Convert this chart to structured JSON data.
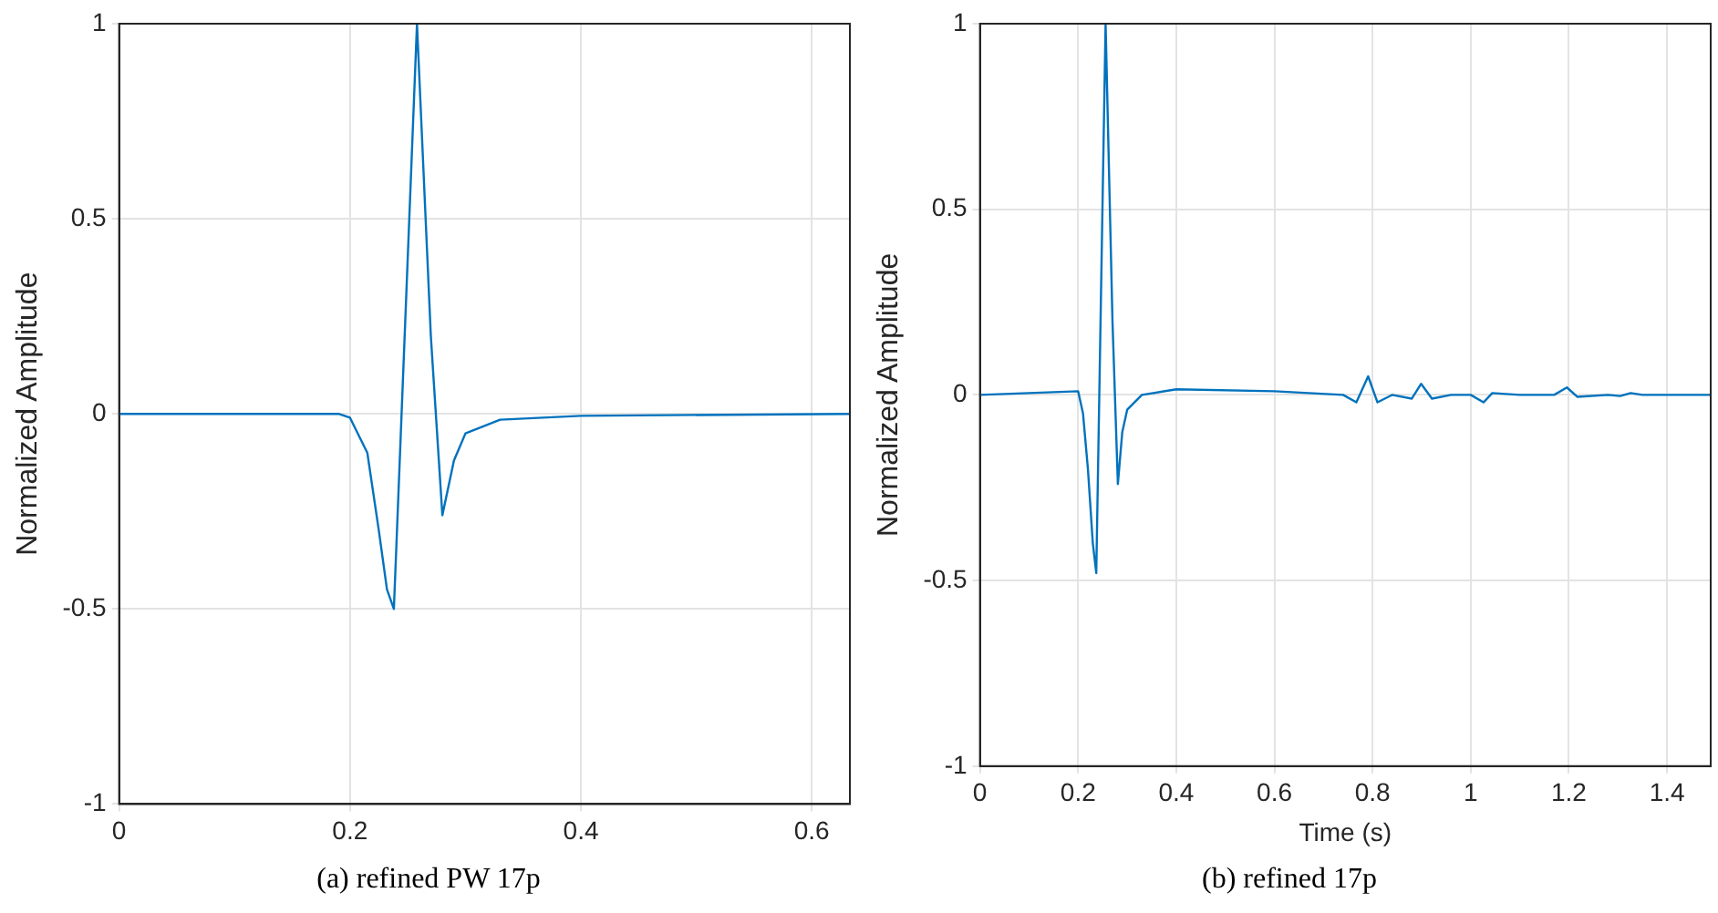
{
  "chart_data": [
    {
      "type": "line",
      "ylabel": "Normalized Amplitude",
      "annotations": [
        "(a) refined PW 17p"
      ],
      "xlim": [
        0,
        0.633
      ],
      "xticks": [
        0,
        0.2,
        0.4,
        0.6
      ],
      "ylim": [
        -1,
        1
      ],
      "yticks": [
        -1,
        -0.5,
        0,
        0.5,
        1
      ],
      "grid": true,
      "legend": false,
      "marker": "none",
      "line_style": "solid",
      "series": [
        {
          "color": "#0072bd",
          "x": [
            0,
            0.19,
            0.2,
            0.215,
            0.225,
            0.232,
            0.238,
            0.25,
            0.258,
            0.27,
            0.28,
            0.29,
            0.3,
            0.33,
            0.4,
            0.633
          ],
          "values": [
            0,
            0,
            -0.01,
            -0.1,
            -0.3,
            -0.45,
            -0.5,
            0.4,
            1,
            0.2,
            -0.26,
            -0.12,
            -0.05,
            -0.015,
            -0.005,
            0
          ]
        }
      ]
    },
    {
      "type": "line",
      "xlabel": "Time (s)",
      "ylabel": "Normalized Amplitude",
      "annotations": [
        "(b) refined 17p"
      ],
      "xlim": [
        0,
        1.489
      ],
      "xticks": [
        0,
        0.2,
        0.4,
        0.6,
        0.8,
        1,
        1.2,
        1.4
      ],
      "ylim": [
        -1,
        1
      ],
      "yticks": [
        -1,
        -0.5,
        0,
        0.5,
        1
      ],
      "grid": true,
      "legend": false,
      "marker": "none",
      "line_style": "solid",
      "series": [
        {
          "color": "#0072bd",
          "x": [
            0,
            0.1,
            0.2,
            0.21,
            0.22,
            0.23,
            0.237,
            0.256,
            0.27,
            0.281,
            0.29,
            0.3,
            0.33,
            0.4,
            0.6,
            0.74,
            0.767,
            0.791,
            0.81,
            0.84,
            0.88,
            0.899,
            0.921,
            0.96,
            1.0,
            1.026,
            1.044,
            1.1,
            1.17,
            1.196,
            1.217,
            1.28,
            1.304,
            1.326,
            1.35,
            1.489
          ],
          "values": [
            0,
            0.005,
            0.01,
            -0.05,
            -0.2,
            -0.4,
            -0.48,
            1,
            0.2,
            -0.24,
            -0.1,
            -0.04,
            0,
            0.015,
            0.01,
            0,
            -0.02,
            0.05,
            -0.02,
            0,
            -0.01,
            0.03,
            -0.01,
            0,
            0,
            -0.02,
            0.005,
            0,
            0,
            0.02,
            -0.005,
            0,
            -0.003,
            0.005,
            0,
            0
          ]
        }
      ]
    }
  ]
}
